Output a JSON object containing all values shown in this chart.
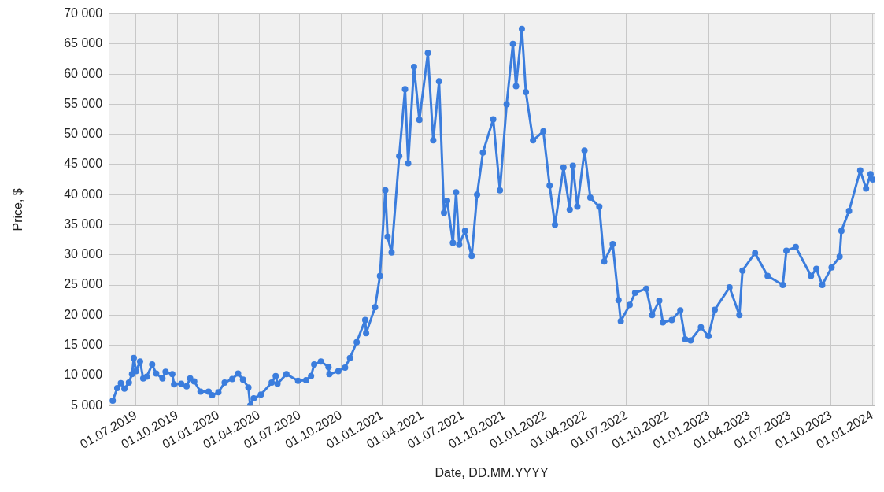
{
  "chart_data": {
    "type": "line",
    "xlabel": "Date, DD.MM.YYYY",
    "ylabel": "Price, $",
    "xlim": [
      "2019-05-01",
      "2024-01-06"
    ],
    "xticks": [
      {
        "value": "2019-07-01",
        "label": "01.07.2019"
      },
      {
        "value": "2019-10-01",
        "label": "01.10.2019"
      },
      {
        "value": "2020-01-01",
        "label": "01.01.2020"
      },
      {
        "value": "2020-04-01",
        "label": "01.04.2020"
      },
      {
        "value": "2020-07-01",
        "label": "01.07.2020"
      },
      {
        "value": "2020-10-01",
        "label": "01.10.2020"
      },
      {
        "value": "2021-01-01",
        "label": "01.01.2021"
      },
      {
        "value": "2021-04-01",
        "label": "01.04.2021"
      },
      {
        "value": "2021-07-01",
        "label": "01.07.2021"
      },
      {
        "value": "2021-10-01",
        "label": "01.10.2021"
      },
      {
        "value": "2022-01-01",
        "label": "01.01.2022"
      },
      {
        "value": "2022-04-01",
        "label": "01.04.2022"
      },
      {
        "value": "2022-07-01",
        "label": "01.07.2022"
      },
      {
        "value": "2022-10-01",
        "label": "01.10.2022"
      },
      {
        "value": "2023-01-01",
        "label": "01.01.2023"
      },
      {
        "value": "2023-04-01",
        "label": "01.04.2023"
      },
      {
        "value": "2023-07-01",
        "label": "01.07.2023"
      },
      {
        "value": "2023-10-01",
        "label": "01.10.2023"
      },
      {
        "value": "2024-01-01",
        "label": "01.01.2024"
      }
    ],
    "ylim": [
      5000,
      70000
    ],
    "yticks": [
      {
        "value": 5000,
        "label": "5 000"
      },
      {
        "value": 10000,
        "label": "10 000"
      },
      {
        "value": 15000,
        "label": "15 000"
      },
      {
        "value": 20000,
        "label": "20 000"
      },
      {
        "value": 25000,
        "label": "25 000"
      },
      {
        "value": 30000,
        "label": "30 000"
      },
      {
        "value": 35000,
        "label": "35 000"
      },
      {
        "value": 40000,
        "label": "40 000"
      },
      {
        "value": 45000,
        "label": "45 000"
      },
      {
        "value": 50000,
        "label": "50 000"
      },
      {
        "value": 55000,
        "label": "55 000"
      },
      {
        "value": 60000,
        "label": "60 000"
      },
      {
        "value": 65000,
        "label": "65 000"
      },
      {
        "value": 70000,
        "label": "70 000"
      }
    ],
    "grid": true,
    "legend": false,
    "marker": "circle",
    "line_style": "solid",
    "x": [
      "2019-05-10",
      "2019-05-20",
      "2019-05-28",
      "2019-06-05",
      "2019-06-15",
      "2019-06-22",
      "2019-06-26",
      "2019-07-01",
      "2019-07-10",
      "2019-07-17",
      "2019-07-25",
      "2019-08-06",
      "2019-08-15",
      "2019-08-29",
      "2019-09-05",
      "2019-09-20",
      "2019-09-24",
      "2019-10-10",
      "2019-10-22",
      "2019-10-30",
      "2019-11-08",
      "2019-11-22",
      "2019-12-10",
      "2019-12-18",
      "2020-01-01",
      "2020-01-15",
      "2020-02-01",
      "2020-02-14",
      "2020-02-25",
      "2020-03-08",
      "2020-03-12",
      "2020-03-20",
      "2020-04-05",
      "2020-04-29",
      "2020-05-08",
      "2020-05-12",
      "2020-06-01",
      "2020-06-27",
      "2020-07-15",
      "2020-07-26",
      "2020-08-02",
      "2020-08-17",
      "2020-09-03",
      "2020-09-05",
      "2020-09-25",
      "2020-10-10",
      "2020-10-21",
      "2020-11-05",
      "2020-11-24",
      "2020-11-26",
      "2020-12-16",
      "2020-12-27",
      "2021-01-08",
      "2021-01-13",
      "2021-01-22",
      "2021-02-08",
      "2021-02-21",
      "2021-02-28",
      "2021-03-13",
      "2021-03-25",
      "2021-04-13",
      "2021-04-25",
      "2021-05-08",
      "2021-05-19",
      "2021-05-26",
      "2021-06-08",
      "2021-06-15",
      "2021-06-22",
      "2021-07-05",
      "2021-07-20",
      "2021-08-01",
      "2021-08-14",
      "2021-09-06",
      "2021-09-21",
      "2021-10-06",
      "2021-10-20",
      "2021-10-27",
      "2021-11-09",
      "2021-11-18",
      "2021-12-04",
      "2021-12-27",
      "2022-01-10",
      "2022-01-22",
      "2022-02-10",
      "2022-02-24",
      "2022-03-03",
      "2022-03-13",
      "2022-03-29",
      "2022-04-11",
      "2022-05-01",
      "2022-05-12",
      "2022-05-31",
      "2022-06-13",
      "2022-06-18",
      "2022-07-08",
      "2022-07-20",
      "2022-08-14",
      "2022-08-27",
      "2022-09-12",
      "2022-09-20",
      "2022-10-10",
      "2022-10-29",
      "2022-11-09",
      "2022-11-21",
      "2022-12-14",
      "2022-12-31",
      "2023-01-14",
      "2023-02-16",
      "2023-03-10",
      "2023-03-17",
      "2023-04-14",
      "2023-05-12",
      "2023-06-15",
      "2023-06-23",
      "2023-07-14",
      "2023-08-17",
      "2023-08-29",
      "2023-09-11",
      "2023-10-02",
      "2023-10-20",
      "2023-10-24",
      "2023-11-10",
      "2023-12-05",
      "2023-12-18",
      "2023-12-28",
      "2024-01-02"
    ],
    "series": [
      {
        "color": "#3b7ddd",
        "values": [
          5800,
          7900,
          8700,
          7800,
          8800,
          10200,
          12900,
          10700,
          12300,
          9500,
          9800,
          11800,
          10300,
          9500,
          10600,
          10200,
          8500,
          8600,
          8200,
          9500,
          9000,
          7300,
          7300,
          6700,
          7200,
          8800,
          9400,
          10300,
          9300,
          8000,
          5000,
          6200,
          6800,
          8800,
          9900,
          8600,
          10200,
          9100,
          9200,
          9900,
          11800,
          12300,
          11400,
          10200,
          10700,
          11300,
          12900,
          15500,
          19200,
          17000,
          21300,
          26500,
          40700,
          33000,
          30400,
          46400,
          57500,
          45200,
          61200,
          52400,
          63500,
          49000,
          58800,
          37000,
          39000,
          32000,
          40400,
          31700,
          34000,
          29800,
          40000,
          47000,
          52500,
          40700,
          55000,
          65000,
          58000,
          67500,
          57000,
          49000,
          50500,
          41500,
          35000,
          44500,
          37500,
          44800,
          38000,
          47300,
          39500,
          38000,
          28900,
          31800,
          22500,
          19000,
          21700,
          23700,
          24400,
          20000,
          22400,
          18800,
          19200,
          20800,
          16000,
          15800,
          18000,
          16500,
          20900,
          24600,
          20000,
          27400,
          30300,
          26500,
          25000,
          30700,
          31300,
          26500,
          27700,
          25000,
          27900,
          29700,
          34000,
          37300,
          44000,
          41000,
          43400,
          42500
        ]
      }
    ]
  }
}
